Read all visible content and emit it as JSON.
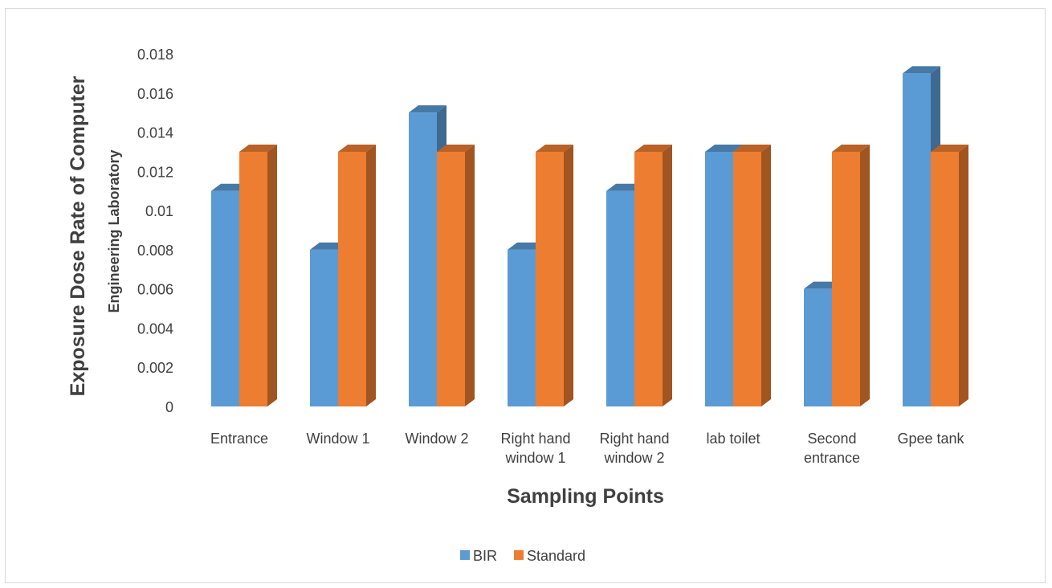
{
  "chart_data": {
    "type": "bar",
    "style": "3d-clustered-column",
    "categories": [
      [
        "Entrance"
      ],
      [
        "Window 1"
      ],
      [
        "Window 2"
      ],
      [
        "Right hand",
        "window 1"
      ],
      [
        "Right hand",
        "window 2"
      ],
      [
        "lab toilet"
      ],
      [
        "Second",
        "entrance"
      ],
      [
        "Gpee tank"
      ]
    ],
    "series": [
      {
        "name": "BIR",
        "color": "#5B9BD5",
        "values": [
          0.011,
          0.008,
          0.015,
          0.008,
          0.011,
          0.013,
          0.006,
          0.017
        ]
      },
      {
        "name": "Standard",
        "color": "#ED7D31",
        "values": [
          0.013,
          0.013,
          0.013,
          0.013,
          0.013,
          0.013,
          0.013,
          0.013
        ]
      }
    ],
    "ylabel": "Exposure Dose Rate of Computer",
    "ylabel_sub": "Engineering Laboratory",
    "xlabel": "Sampling Points",
    "ylim": [
      0,
      0.018
    ],
    "yticks": [
      "0",
      "0.002",
      "0.004",
      "0.006",
      "0.008",
      "0.01",
      "0.012",
      "0.014",
      "0.016",
      "0.018"
    ],
    "grid": false,
    "legend": "bottom"
  }
}
